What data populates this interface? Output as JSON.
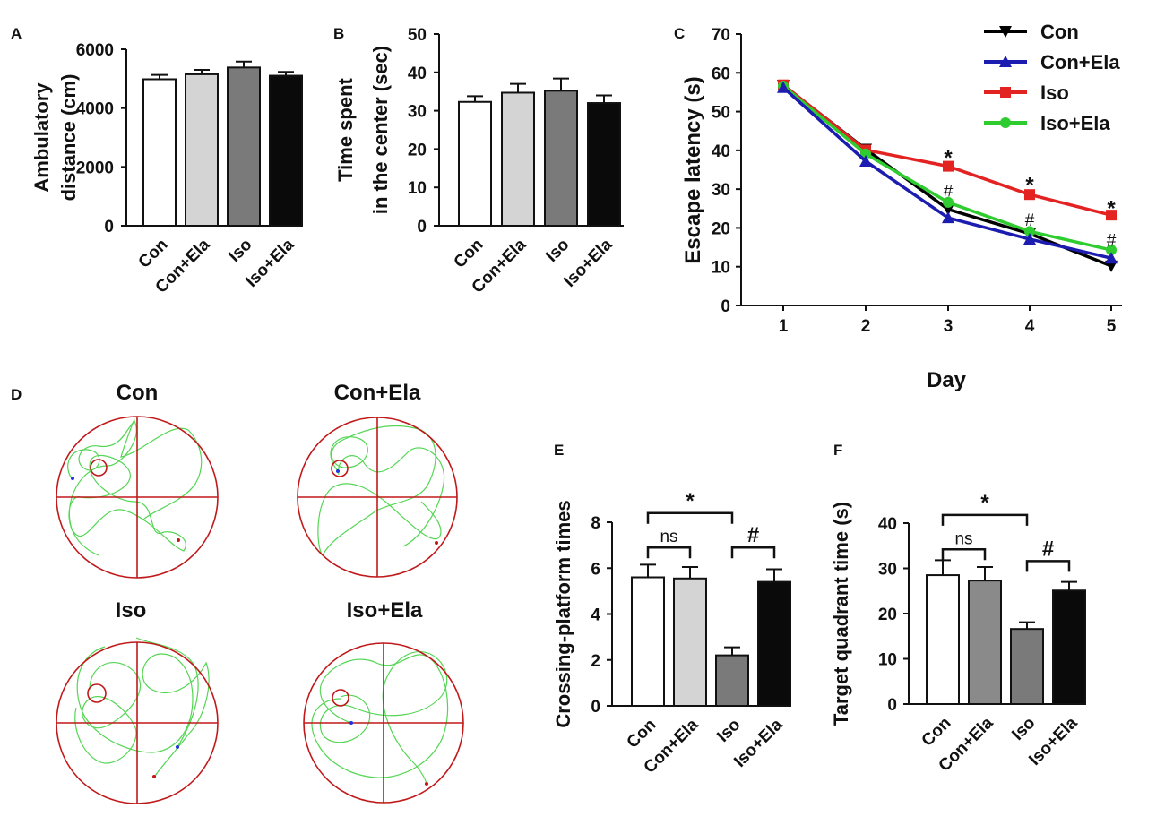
{
  "chart_data": [
    {
      "panel": "A",
      "type": "bar",
      "categories": [
        "Con",
        "Con+Ela",
        "Iso",
        "Iso+Ela"
      ],
      "values": [
        4980,
        5150,
        5380,
        5100
      ],
      "errors": [
        150,
        150,
        200,
        130
      ],
      "colors": [
        "#ffffff",
        "#d4d4d4",
        "#7a7a7a",
        "#0a0a0a"
      ],
      "ylabel_lines": [
        "Ambulatory",
        "distance (cm)"
      ],
      "ylim": [
        0,
        6000
      ],
      "yticks": [
        "0",
        "2000",
        "4000",
        "6000"
      ],
      "ytick_values": [
        0,
        2000,
        4000,
        6000
      ]
    },
    {
      "panel": "B",
      "type": "bar",
      "categories": [
        "Con",
        "Con+Ela",
        "Iso",
        "Iso+Ela"
      ],
      "values": [
        32.3,
        34.7,
        35.2,
        32.0
      ],
      "errors": [
        1.5,
        2.3,
        3.2,
        2.0
      ],
      "colors": [
        "#ffffff",
        "#d4d4d4",
        "#7a7a7a",
        "#0a0a0a"
      ],
      "ylabel_lines": [
        "Time spent",
        "in the center (sec)"
      ],
      "ylim": [
        0,
        50
      ],
      "yticks": [
        "0",
        "10",
        "20",
        "30",
        "40",
        "50"
      ],
      "ytick_values": [
        0,
        10,
        20,
        30,
        40,
        50
      ]
    },
    {
      "panel": "C",
      "type": "line",
      "x": [
        1,
        2,
        3,
        4,
        5
      ],
      "xticks": [
        "1",
        "2",
        "3",
        "4",
        "5"
      ],
      "xlabel": "Day",
      "ylabel": "Escape latency (s)",
      "ylim": [
        0,
        70
      ],
      "yticks": [
        "0",
        "10",
        "20",
        "30",
        "40",
        "50",
        "60",
        "70"
      ],
      "ytick_values": [
        0,
        10,
        20,
        30,
        40,
        50,
        60,
        70
      ],
      "series": [
        {
          "name": "Con",
          "color": "#000000",
          "marker": "triangle-down",
          "values": [
            56.8,
            40.3,
            24.8,
            18.5,
            10.2
          ]
        },
        {
          "name": "Con+Ela",
          "color": "#1c1cb0",
          "marker": "triangle-up",
          "values": [
            56.2,
            37.2,
            22.6,
            17.1,
            12.2
          ]
        },
        {
          "name": "Iso",
          "color": "#e32222",
          "marker": "square",
          "values": [
            56.9,
            40.1,
            35.9,
            28.6,
            23.3
          ]
        },
        {
          "name": "Iso+Ela",
          "color": "#2fcc2f",
          "marker": "circle",
          "values": [
            56.6,
            39.1,
            26.6,
            19.1,
            14.3
          ]
        }
      ],
      "annotations": [
        {
          "text": "*",
          "x": 3,
          "y": 39.5
        },
        {
          "text": "*",
          "x": 4,
          "y": 32.5
        },
        {
          "text": "*",
          "x": 5,
          "y": 26.5
        },
        {
          "text": "#",
          "x": 3,
          "y": 29.5
        },
        {
          "text": "#",
          "x": 4,
          "y": 22.0
        },
        {
          "text": "#",
          "x": 5,
          "y": 16.8
        }
      ]
    },
    {
      "panel": "E",
      "type": "bar",
      "categories": [
        "Con",
        "Con+Ela",
        "Iso",
        "Iso+Ela"
      ],
      "values": [
        5.6,
        5.55,
        2.2,
        5.4
      ],
      "errors": [
        0.55,
        0.5,
        0.35,
        0.55
      ],
      "colors": [
        "#ffffff",
        "#d4d4d4",
        "#7a7a7a",
        "#0a0a0a"
      ],
      "ylabel": "Crossing-platform times",
      "ylim": [
        0,
        8
      ],
      "yticks": [
        "0",
        "2",
        "4",
        "6",
        "8"
      ],
      "ytick_values": [
        0,
        2,
        4,
        6,
        8
      ],
      "brackets": [
        {
          "from": 0,
          "to": 2,
          "y": 8.4,
          "label": "*"
        },
        {
          "from": 0,
          "to": 1,
          "y": 6.9,
          "label": "ns"
        },
        {
          "from": 2,
          "to": 3,
          "y": 6.9,
          "label": "#"
        }
      ]
    },
    {
      "panel": "F",
      "type": "bar",
      "categories": [
        "Con",
        "Con+Ela",
        "Iso",
        "Iso+Ela"
      ],
      "values": [
        28.5,
        27.3,
        16.6,
        25.1
      ],
      "errors": [
        3.3,
        3.0,
        1.5,
        1.9
      ],
      "colors": [
        "#ffffff",
        "#8a8a8a",
        "#7a7a7a",
        "#0a0a0a"
      ],
      "ylabel": "Target quadrant time (s)",
      "ylim": [
        0,
        40
      ],
      "yticks": [
        "0",
        "10",
        "20",
        "30",
        "40"
      ],
      "ytick_values": [
        0,
        10,
        20,
        30,
        40
      ],
      "brackets": [
        {
          "from": 0,
          "to": 2,
          "y": 41.8,
          "label": "*"
        },
        {
          "from": 0,
          "to": 1,
          "y": 34.2,
          "label": "ns"
        },
        {
          "from": 2,
          "to": 3,
          "y": 31.6,
          "label": "#"
        }
      ]
    }
  ],
  "panel_letters": [
    "A",
    "B",
    "C",
    "D",
    "E",
    "F"
  ],
  "panel_d": {
    "titles": [
      "Con",
      "Con+Ela",
      "Iso",
      "Iso+Ela"
    ],
    "pool_color": "#c0191a",
    "path_color": "#54d654"
  }
}
